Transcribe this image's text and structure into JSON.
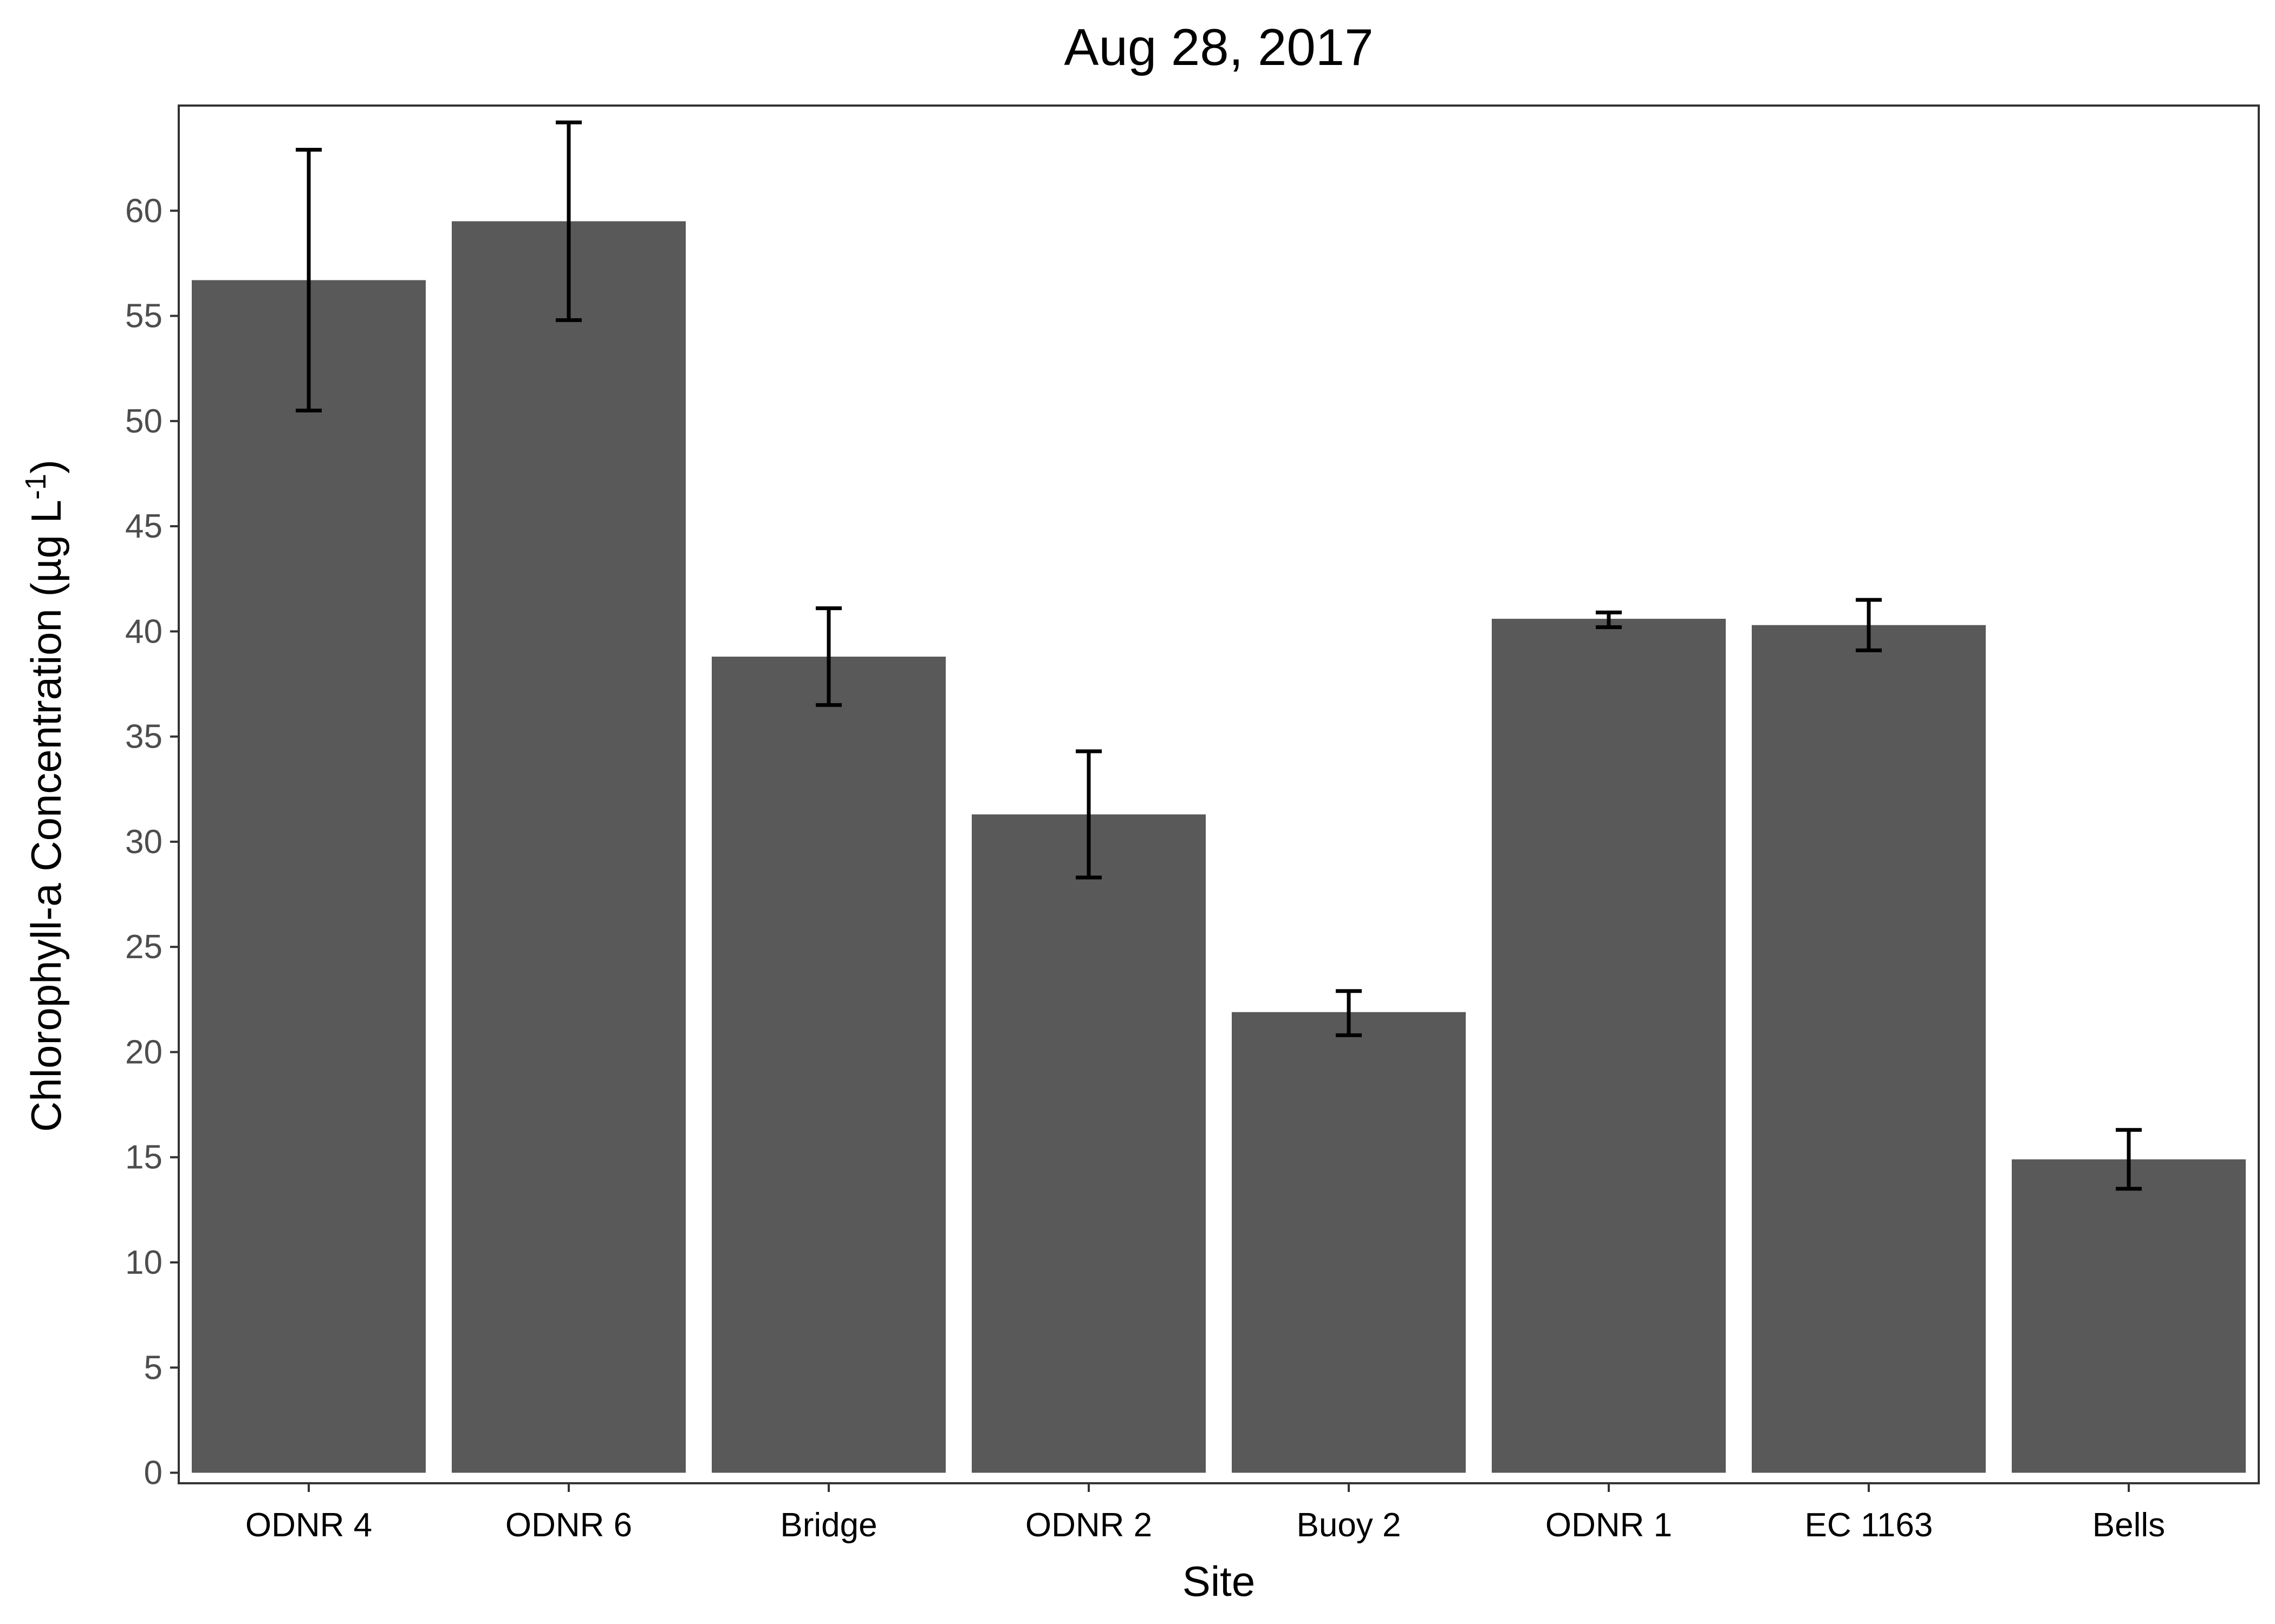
{
  "chart_data": {
    "type": "bar",
    "title": "Aug 28, 2017",
    "xlabel": "Site",
    "ylabel": {
      "main": "Chlorophyll-a Concentration (µg L",
      "superscript": "-1",
      "close": ")"
    },
    "categories": [
      "ODNR 4",
      "ODNR 6",
      "Bridge",
      "ODNR 2",
      "Buoy 2",
      "ODNR 1",
      "EC 1163",
      "Bells"
    ],
    "values": [
      56.7,
      59.5,
      38.8,
      31.3,
      21.9,
      40.6,
      40.3,
      14.9
    ],
    "error_low": [
      50.5,
      54.8,
      36.5,
      28.3,
      20.8,
      40.2,
      39.1,
      13.5
    ],
    "error_high": [
      62.9,
      64.2,
      41.1,
      34.3,
      22.9,
      40.9,
      41.5,
      16.3
    ],
    "yticks": [
      0,
      5,
      10,
      15,
      20,
      25,
      30,
      35,
      40,
      45,
      50,
      55,
      60
    ],
    "ylim": [
      -0.5,
      65.0
    ],
    "grid": false,
    "legend": "none",
    "colors": {
      "bar": "#595959",
      "error_bar": "#000000",
      "axis": "#333333",
      "tick_label": "#4d4d4d",
      "background": "#ffffff"
    }
  }
}
